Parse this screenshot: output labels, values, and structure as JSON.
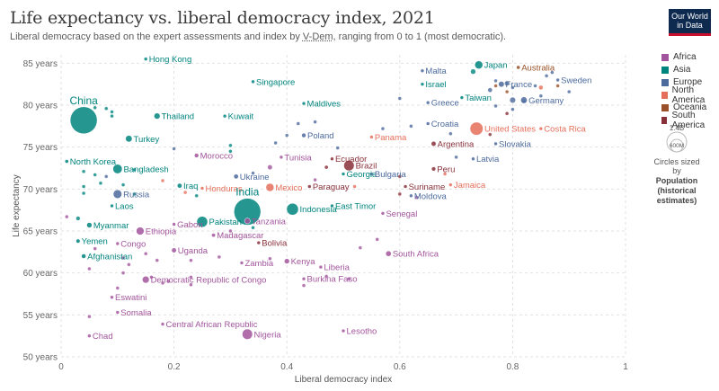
{
  "header": {
    "title": "Life expectancy vs. liberal democracy index, 2021",
    "subtitle_pre": "Liberal democracy based on the expert assessments and index by ",
    "subtitle_link": "V-Dem",
    "subtitle_post": ", ranging from 0 to 1 (most democratic).",
    "logo_line1": "Our World",
    "logo_line2": "in Data"
  },
  "colors": {
    "Africa": "#a2559c",
    "Asia": "#00847e",
    "Europe": "#4c6a9c",
    "North America": "#e56e5a",
    "Oceania": "#9a5129",
    "South America": "#883039"
  },
  "legend": {
    "items": [
      "Africa",
      "Asia",
      "Europe",
      "North America",
      "Oceania",
      "South America"
    ],
    "size_max": "1.4B",
    "size_min": "600M",
    "size_caption": "Circles sized by",
    "size_var": "Population",
    "size_var2": "(historical",
    "size_var3": "estimates)"
  },
  "chart_data": {
    "type": "scatter",
    "title": "Life expectancy vs. liberal democracy index, 2021",
    "xlabel": "Liberal democracy index",
    "ylabel": "Life expectancy",
    "xlim": [
      0,
      1
    ],
    "ylim": [
      50,
      86
    ],
    "xticks": [
      0,
      0.2,
      0.4,
      0.6,
      0.8,
      1
    ],
    "xtick_labels": [
      "0",
      "0.2",
      "0.4",
      "0.6",
      "0.8",
      "1"
    ],
    "yticks": [
      50,
      55,
      60,
      65,
      70,
      75,
      80,
      85
    ],
    "ytick_labels": [
      "50 years",
      "55 years",
      "60 years",
      "65 years",
      "70 years",
      "75 years",
      "80 years",
      "85 years"
    ],
    "grid": true,
    "labeled_points": [
      {
        "label": "Hong Kong",
        "x": 0.15,
        "y": 85.5,
        "region": "Asia",
        "pop": 7
      },
      {
        "label": "Singapore",
        "x": 0.34,
        "y": 82.8,
        "region": "Asia",
        "pop": 6
      },
      {
        "label": "Malta",
        "x": 0.64,
        "y": 84.1,
        "region": "Europe",
        "pop": 0.5
      },
      {
        "label": "Japan",
        "x": 0.74,
        "y": 84.8,
        "region": "Asia",
        "pop": 125
      },
      {
        "label": "Australia",
        "x": 0.81,
        "y": 84.5,
        "region": "Oceania",
        "pop": 26
      },
      {
        "label": "Israel",
        "x": 0.64,
        "y": 82.5,
        "region": "Asia",
        "pop": 9
      },
      {
        "label": "France",
        "x": 0.78,
        "y": 82.5,
        "region": "Europe",
        "pop": 65
      },
      {
        "label": "Sweden",
        "x": 0.88,
        "y": 83.0,
        "region": "Europe",
        "pop": 10
      },
      {
        "label": "Taiwan",
        "x": 0.71,
        "y": 80.9,
        "region": "Asia",
        "pop": 24
      },
      {
        "label": "Germany",
        "x": 0.82,
        "y": 80.6,
        "region": "Europe",
        "pop": 83
      },
      {
        "label": "Greece",
        "x": 0.65,
        "y": 80.3,
        "region": "Europe",
        "pop": 10
      },
      {
        "label": "Maldives",
        "x": 0.43,
        "y": 80.2,
        "region": "Asia",
        "pop": 0.5
      },
      {
        "label": "China",
        "x": 0.04,
        "y": 78.2,
        "region": "Asia",
        "pop": 1425
      },
      {
        "label": "Thailand",
        "x": 0.17,
        "y": 78.7,
        "region": "Asia",
        "pop": 72
      },
      {
        "label": "Kuwait",
        "x": 0.29,
        "y": 78.7,
        "region": "Asia",
        "pop": 4
      },
      {
        "label": "Croatia",
        "x": 0.65,
        "y": 77.8,
        "region": "Europe",
        "pop": 4
      },
      {
        "label": "United States",
        "x": 0.736,
        "y": 77.2,
        "region": "North America",
        "pop": 336
      },
      {
        "label": "Costa Rica",
        "x": 0.85,
        "y": 77.2,
        "region": "North America",
        "pop": 5
      },
      {
        "label": "Poland",
        "x": 0.43,
        "y": 76.4,
        "region": "Europe",
        "pop": 38
      },
      {
        "label": "Panama",
        "x": 0.55,
        "y": 76.2,
        "region": "North America",
        "pop": 4
      },
      {
        "label": "Turkey",
        "x": 0.12,
        "y": 76.0,
        "region": "Asia",
        "pop": 85
      },
      {
        "label": "Argentina",
        "x": 0.66,
        "y": 75.4,
        "region": "South America",
        "pop": 46
      },
      {
        "label": "Slovakia",
        "x": 0.77,
        "y": 75.4,
        "region": "Europe",
        "pop": 5
      },
      {
        "label": "Morocco",
        "x": 0.24,
        "y": 74.0,
        "region": "Africa",
        "pop": 37
      },
      {
        "label": "Tunisia",
        "x": 0.39,
        "y": 73.8,
        "region": "Africa",
        "pop": 12
      },
      {
        "label": "Ecuador",
        "x": 0.48,
        "y": 73.6,
        "region": "South America",
        "pop": 18
      },
      {
        "label": "Latvia",
        "x": 0.73,
        "y": 73.6,
        "region": "Europe",
        "pop": 2
      },
      {
        "label": "North Korea",
        "x": 0.01,
        "y": 73.3,
        "region": "Asia",
        "pop": 26
      },
      {
        "label": "Bangladesh",
        "x": 0.1,
        "y": 72.4,
        "region": "Asia",
        "pop": 169
      },
      {
        "label": "Brazil",
        "x": 0.51,
        "y": 72.8,
        "region": "South America",
        "pop": 214
      },
      {
        "label": "Peru",
        "x": 0.66,
        "y": 72.4,
        "region": "South America",
        "pop": 34
      },
      {
        "label": "Ukraine",
        "x": 0.31,
        "y": 71.5,
        "region": "Europe",
        "pop": 43
      },
      {
        "label": "Georgia",
        "x": 0.5,
        "y": 71.8,
        "region": "Asia",
        "pop": 4
      },
      {
        "label": "Bulgaria",
        "x": 0.55,
        "y": 71.8,
        "region": "Europe",
        "pop": 7
      },
      {
        "label": "Iraq",
        "x": 0.21,
        "y": 70.4,
        "region": "Asia",
        "pop": 44
      },
      {
        "label": "Honduras",
        "x": 0.25,
        "y": 70.1,
        "region": "North America",
        "pop": 10
      },
      {
        "label": "Mexico",
        "x": 0.37,
        "y": 70.2,
        "region": "North America",
        "pop": 127
      },
      {
        "label": "Paraguay",
        "x": 0.44,
        "y": 70.3,
        "region": "South America",
        "pop": 7
      },
      {
        "label": "Suriname",
        "x": 0.61,
        "y": 70.3,
        "region": "South America",
        "pop": 1
      },
      {
        "label": "Jamaica",
        "x": 0.69,
        "y": 70.5,
        "region": "North America",
        "pop": 3
      },
      {
        "label": "Russia",
        "x": 0.1,
        "y": 69.4,
        "region": "Europe",
        "pop": 145
      },
      {
        "label": "Moldova",
        "x": 0.62,
        "y": 69.2,
        "region": "Europe",
        "pop": 3
      },
      {
        "label": "Laos",
        "x": 0.09,
        "y": 68.0,
        "region": "Asia",
        "pop": 7
      },
      {
        "label": "India",
        "x": 0.33,
        "y": 67.3,
        "region": "Asia",
        "pop": 1408
      },
      {
        "label": "Indonesia",
        "x": 0.41,
        "y": 67.6,
        "region": "Asia",
        "pop": 274
      },
      {
        "label": "East Timor",
        "x": 0.48,
        "y": 68.0,
        "region": "Asia",
        "pop": 1
      },
      {
        "label": "Senegal",
        "x": 0.57,
        "y": 67.1,
        "region": "Africa",
        "pop": 17
      },
      {
        "label": "Pakistan",
        "x": 0.25,
        "y": 66.1,
        "region": "Asia",
        "pop": 231
      },
      {
        "label": "Tanzania",
        "x": 0.33,
        "y": 66.2,
        "region": "Africa",
        "pop": 64
      },
      {
        "label": "Myanmar",
        "x": 0.05,
        "y": 65.7,
        "region": "Asia",
        "pop": 54
      },
      {
        "label": "Gabon",
        "x": 0.2,
        "y": 65.8,
        "region": "Africa",
        "pop": 2
      },
      {
        "label": "Ethiopia",
        "x": 0.14,
        "y": 65.0,
        "region": "Africa",
        "pop": 120
      },
      {
        "label": "Madagascar",
        "x": 0.27,
        "y": 64.5,
        "region": "Africa",
        "pop": 29
      },
      {
        "label": "Bolivia",
        "x": 0.35,
        "y": 63.6,
        "region": "South America",
        "pop": 12
      },
      {
        "label": "Yemen",
        "x": 0.03,
        "y": 63.8,
        "region": "Asia",
        "pop": 33
      },
      {
        "label": "Congo",
        "x": 0.1,
        "y": 63.5,
        "region": "Africa",
        "pop": 6
      },
      {
        "label": "Uganda",
        "x": 0.2,
        "y": 62.7,
        "region": "Africa",
        "pop": 46
      },
      {
        "label": "South Africa",
        "x": 0.58,
        "y": 62.3,
        "region": "Africa",
        "pop": 60
      },
      {
        "label": "Afghanistan",
        "x": 0.04,
        "y": 62.0,
        "region": "Asia",
        "pop": 40
      },
      {
        "label": "Kenya",
        "x": 0.4,
        "y": 61.4,
        "region": "Africa",
        "pop": 53
      },
      {
        "label": "Zambia",
        "x": 0.32,
        "y": 61.2,
        "region": "Africa",
        "pop": 19
      },
      {
        "label": "Liberia",
        "x": 0.46,
        "y": 60.7,
        "region": "Africa",
        "pop": 5
      },
      {
        "label": "Democratic Republic of Congo",
        "x": 0.15,
        "y": 59.2,
        "region": "Africa",
        "pop": 95
      },
      {
        "label": "Burkina Faso",
        "x": 0.43,
        "y": 59.3,
        "region": "Africa",
        "pop": 22
      },
      {
        "label": "Eswatini",
        "x": 0.09,
        "y": 57.1,
        "region": "Africa",
        "pop": 1
      },
      {
        "label": "Somalia",
        "x": 0.1,
        "y": 55.3,
        "region": "Africa",
        "pop": 17
      },
      {
        "label": "Central African Republic",
        "x": 0.18,
        "y": 53.9,
        "region": "Africa",
        "pop": 5
      },
      {
        "label": "Nigeria",
        "x": 0.33,
        "y": 52.7,
        "region": "Africa",
        "pop": 213
      },
      {
        "label": "Lesotho",
        "x": 0.5,
        "y": 53.1,
        "region": "Africa",
        "pop": 2
      },
      {
        "label": "Chad",
        "x": 0.05,
        "y": 52.5,
        "region": "Africa",
        "pop": 17
      }
    ],
    "unlabeled_points": [
      {
        "x": 0.06,
        "y": 79.7,
        "region": "Asia",
        "pop": 3
      },
      {
        "x": 0.08,
        "y": 79.6,
        "region": "Asia",
        "pop": 10
      },
      {
        "x": 0.09,
        "y": 79.2,
        "region": "Asia",
        "pop": 2
      },
      {
        "x": 0.09,
        "y": 78.7,
        "region": "Asia",
        "pop": 5
      },
      {
        "x": 0.3,
        "y": 75.2,
        "region": "Asia",
        "pop": 6
      },
      {
        "x": 0.3,
        "y": 74.5,
        "region": "Asia",
        "pop": 8
      },
      {
        "x": 0.04,
        "y": 72.1,
        "region": "Asia",
        "pop": 5
      },
      {
        "x": 0.06,
        "y": 71.7,
        "region": "Asia",
        "pop": 3
      },
      {
        "x": 0.13,
        "y": 72.3,
        "region": "Asia",
        "pop": 6
      },
      {
        "x": 0.04,
        "y": 70.3,
        "region": "Asia",
        "pop": 10
      },
      {
        "x": 0.07,
        "y": 70.7,
        "region": "Asia",
        "pop": 10
      },
      {
        "x": 0.11,
        "y": 70.5,
        "region": "Asia",
        "pop": 6
      },
      {
        "x": 0.04,
        "y": 69.5,
        "region": "Asia",
        "pop": 3
      },
      {
        "x": 0.03,
        "y": 66.5,
        "region": "Asia",
        "pop": 35
      },
      {
        "x": 0.13,
        "y": 69.4,
        "region": "Asia",
        "pop": 10
      },
      {
        "x": 0.24,
        "y": 69.2,
        "region": "Asia",
        "pop": 16
      },
      {
        "x": 0.34,
        "y": 65.4,
        "region": "Asia",
        "pop": 2
      },
      {
        "x": 0.01,
        "y": 66.7,
        "region": "Africa",
        "pop": 6
      },
      {
        "x": 0.06,
        "y": 62.9,
        "region": "Africa",
        "pop": 5
      },
      {
        "x": 0.11,
        "y": 61.8,
        "region": "Africa",
        "pop": 10
      },
      {
        "x": 0.12,
        "y": 61.0,
        "region": "Africa",
        "pop": 12
      },
      {
        "x": 0.11,
        "y": 60.0,
        "region": "Africa",
        "pop": 8
      },
      {
        "x": 0.05,
        "y": 60.5,
        "region": "Africa",
        "pop": 16
      },
      {
        "x": 0.15,
        "y": 62.3,
        "region": "Africa",
        "pop": 6
      },
      {
        "x": 0.17,
        "y": 61.5,
        "region": "Africa",
        "pop": 16
      },
      {
        "x": 0.19,
        "y": 59.0,
        "region": "Africa",
        "pop": 27
      },
      {
        "x": 0.23,
        "y": 59.5,
        "region": "Africa",
        "pop": 15
      },
      {
        "x": 0.23,
        "y": 58.6,
        "region": "Africa",
        "pop": 20
      },
      {
        "x": 0.28,
        "y": 61.9,
        "region": "Africa",
        "pop": 8
      },
      {
        "x": 0.3,
        "y": 65.0,
        "region": "Africa",
        "pop": 4
      },
      {
        "x": 0.23,
        "y": 61.5,
        "region": "Africa",
        "pop": 4
      },
      {
        "x": 0.05,
        "y": 54.8,
        "region": "Africa",
        "pop": 14
      },
      {
        "x": 0.18,
        "y": 58.8,
        "region": "Africa",
        "pop": 6
      },
      {
        "x": 0.37,
        "y": 61.7,
        "region": "Africa",
        "pop": 4
      },
      {
        "x": 0.47,
        "y": 59.6,
        "region": "Africa",
        "pop": 20
      },
      {
        "x": 0.43,
        "y": 58.5,
        "region": "Africa",
        "pop": 8
      },
      {
        "x": 0.56,
        "y": 64.0,
        "region": "Africa",
        "pop": 2
      },
      {
        "x": 0.53,
        "y": 63.0,
        "region": "Africa",
        "pop": 1
      },
      {
        "x": 0.51,
        "y": 59.3,
        "region": "Africa",
        "pop": 2
      },
      {
        "x": 0.16,
        "y": 59.5,
        "region": "Africa",
        "pop": 5
      },
      {
        "x": 0.1,
        "y": 58.2,
        "region": "Africa",
        "pop": 2
      },
      {
        "x": 0.37,
        "y": 72.6,
        "region": "Africa",
        "pop": 45
      },
      {
        "x": 0.45,
        "y": 71.1,
        "region": "Africa",
        "pop": 3
      },
      {
        "x": 0.63,
        "y": 69.0,
        "region": "Africa",
        "pop": 1
      },
      {
        "x": 0.42,
        "y": 77.8,
        "region": "Europe",
        "pop": 10
      },
      {
        "x": 0.49,
        "y": 74.9,
        "region": "Europe",
        "pop": 2
      },
      {
        "x": 0.57,
        "y": 77.2,
        "region": "Europe",
        "pop": 2
      },
      {
        "x": 0.62,
        "y": 77.5,
        "region": "Europe",
        "pop": 1
      },
      {
        "x": 0.69,
        "y": 76.6,
        "region": "Europe",
        "pop": 1
      },
      {
        "x": 0.38,
        "y": 75.5,
        "region": "Europe",
        "pop": 4
      },
      {
        "x": 0.7,
        "y": 73.8,
        "region": "Europe",
        "pop": 3
      },
      {
        "x": 0.76,
        "y": 81.8,
        "region": "Europe",
        "pop": 40
      },
      {
        "x": 0.79,
        "y": 82.6,
        "region": "Europe",
        "pop": 47
      },
      {
        "x": 0.8,
        "y": 80.6,
        "region": "Europe",
        "pop": 67
      },
      {
        "x": 0.84,
        "y": 82.3,
        "region": "Europe",
        "pop": 17
      },
      {
        "x": 0.86,
        "y": 83.5,
        "region": "Europe",
        "pop": 9
      },
      {
        "x": 0.87,
        "y": 83.9,
        "region": "Europe",
        "pop": 6
      },
      {
        "x": 0.9,
        "y": 81.6,
        "region": "Europe",
        "pop": 5
      },
      {
        "x": 0.85,
        "y": 81.1,
        "region": "Europe",
        "pop": 11
      },
      {
        "x": 0.77,
        "y": 82.9,
        "region": "Europe",
        "pop": 8
      },
      {
        "x": 0.6,
        "y": 80.8,
        "region": "Europe",
        "pop": 0.5
      },
      {
        "x": 0.77,
        "y": 79.9,
        "region": "Europe",
        "pop": 6
      },
      {
        "x": 0.8,
        "y": 82.1,
        "region": "Europe",
        "pop": 5
      },
      {
        "x": 0.8,
        "y": 79.5,
        "region": "Europe",
        "pop": 10
      },
      {
        "x": 0.82,
        "y": 80.4,
        "region": "Europe",
        "pop": 2
      },
      {
        "x": 0.2,
        "y": 74.8,
        "region": "Europe",
        "pop": 9
      },
      {
        "x": 0.34,
        "y": 71.9,
        "region": "Europe",
        "pop": 9
      },
      {
        "x": 0.08,
        "y": 71.5,
        "region": "Europe",
        "pop": 9
      },
      {
        "x": 0.73,
        "y": 84.0,
        "region": "Asia",
        "pop": 52
      },
      {
        "x": 0.77,
        "y": 82.3,
        "region": "Oceania",
        "pop": 5
      },
      {
        "x": 0.85,
        "y": 82.1,
        "region": "North America",
        "pop": 38
      },
      {
        "x": 0.88,
        "y": 82.3,
        "region": "Oceania",
        "pop": 5
      },
      {
        "x": 0.79,
        "y": 81.6,
        "region": "Oceania",
        "pop": 5
      },
      {
        "x": 0.6,
        "y": 71.5,
        "region": "South America",
        "pop": 3
      },
      {
        "x": 0.76,
        "y": 76.5,
        "region": "South America",
        "pop": 3
      },
      {
        "x": 0.79,
        "y": 79.0,
        "region": "South America",
        "pop": 20
      },
      {
        "x": 0.18,
        "y": 71.0,
        "region": "North America",
        "pop": 11
      },
      {
        "x": 0.22,
        "y": 69.6,
        "region": "North America",
        "pop": 17
      },
      {
        "x": 0.68,
        "y": 71.8,
        "region": "North America",
        "pop": 1
      },
      {
        "x": 0.52,
        "y": 70.3,
        "region": "North America",
        "pop": 12
      },
      {
        "x": 0.47,
        "y": 72.6,
        "region": "South America",
        "pop": 28
      },
      {
        "x": 0.6,
        "y": 69.4,
        "region": "South America",
        "pop": 4
      },
      {
        "x": 0.4,
        "y": 76.4,
        "region": "Europe",
        "pop": 10
      },
      {
        "x": 0.45,
        "y": 78.0,
        "region": "Europe",
        "pop": 3
      }
    ]
  }
}
